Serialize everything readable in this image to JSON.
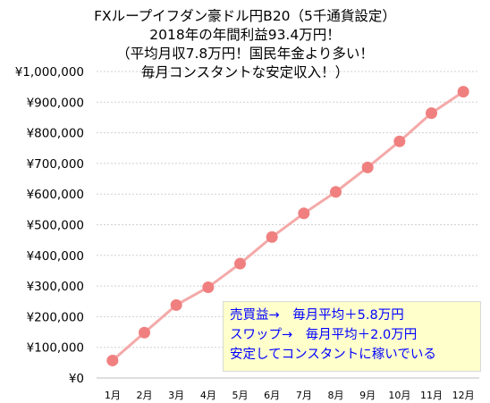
{
  "chart_data": {
    "type": "line",
    "title_lines": [
      "FXループイフダン豪ドル円B20（5千通貨設定）",
      "2018年の年間利益93.4万円！",
      "（平均月収7.8万円！国民年金より多い！",
      "毎月コンスタントな安定収入！）"
    ],
    "categories": [
      "1月",
      "2月",
      "3月",
      "4月",
      "5月",
      "6月",
      "7月",
      "8月",
      "9月",
      "10月",
      "11月",
      "12月"
    ],
    "series": [
      {
        "values": [
          57000,
          148000,
          238000,
          296000,
          373000,
          460000,
          537000,
          607000,
          687000,
          772000,
          864000,
          934000
        ]
      }
    ],
    "ylim": [
      0,
      1000000
    ],
    "yticks": [
      0,
      100000,
      200000,
      300000,
      400000,
      500000,
      600000,
      700000,
      800000,
      900000,
      1000000
    ],
    "ytick_labels": [
      "¥0",
      "¥100,000",
      "¥200,000",
      "¥300,000",
      "¥400,000",
      "¥500,000",
      "¥600,000",
      "¥700,000",
      "¥800,000",
      "¥900,000",
      "¥1,000,000"
    ],
    "grid": true,
    "line_color": "#f4a9a8",
    "marker_color": "#f08080",
    "annotation_lines": [
      "売買益→　毎月平均＋5.8万円",
      "スワップ→　毎月平均＋2.0万円",
      "安定してコンスタントに稼いでいる"
    ],
    "annotation_text_color": "#0000ff",
    "annotation_bg": "#ffffcc"
  }
}
